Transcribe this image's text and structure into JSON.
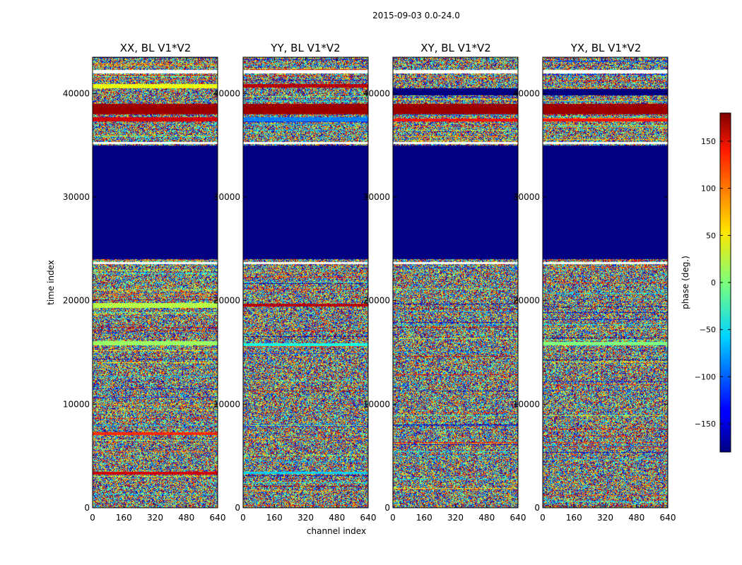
{
  "chart_data": {
    "type": "heatmap",
    "suptitle": "2015-09-03 0.0-24.0",
    "xlabel": "channel index",
    "ylabel": "time index",
    "xlim": [
      0,
      640
    ],
    "ylim": [
      0,
      43500
    ],
    "x_ticks": [
      0,
      160,
      320,
      480,
      640
    ],
    "y_ticks": [
      0,
      10000,
      20000,
      30000,
      40000
    ],
    "colorbar": {
      "label": "phase (deg.)",
      "range": [
        -180,
        180
      ],
      "ticks": [
        150,
        100,
        50,
        0,
        -50,
        -100,
        -150
      ],
      "tick_labels": [
        "150",
        "100",
        "50",
        "0",
        "−50",
        "−100",
        "−150"
      ],
      "colormap": "jet"
    },
    "panels": [
      {
        "title": "XX, BL V1*V2",
        "flat_regions": [
          {
            "t0": 24000,
            "t1": 35000,
            "phase": -180
          },
          {
            "t0": 38000,
            "t1": 39000,
            "phase": 170
          },
          {
            "t0": 37300,
            "t1": 37700,
            "phase": 150
          },
          {
            "t0": 40500,
            "t1": 40900,
            "phase": 40
          },
          {
            "t0": 19300,
            "t1": 19800,
            "phase": 20
          },
          {
            "t0": 15700,
            "t1": 16100,
            "phase": 10
          },
          {
            "t0": 7000,
            "t1": 7300,
            "phase": 120
          },
          {
            "t0": 3200,
            "t1": 3500,
            "phase": 150
          }
        ]
      },
      {
        "title": "YY, BL V1*V2",
        "flat_regions": [
          {
            "t0": 24000,
            "t1": 35000,
            "phase": -180
          },
          {
            "t0": 38000,
            "t1": 39000,
            "phase": 170
          },
          {
            "t0": 37300,
            "t1": 37700,
            "phase": -90
          },
          {
            "t0": 40600,
            "t1": 40900,
            "phase": 160
          },
          {
            "t0": 19400,
            "t1": 19700,
            "phase": 160
          },
          {
            "t0": 15600,
            "t1": 15900,
            "phase": -40
          },
          {
            "t0": 3300,
            "t1": 3500,
            "phase": -60
          }
        ]
      },
      {
        "title": "XY, BL V1*V2",
        "flat_regions": [
          {
            "t0": 24000,
            "t1": 35000,
            "phase": -180
          },
          {
            "t0": 38000,
            "t1": 39000,
            "phase": 170
          },
          {
            "t0": 39800,
            "t1": 40500,
            "phase": -180
          },
          {
            "t0": 37300,
            "t1": 37600,
            "phase": 130
          }
        ]
      },
      {
        "title": "YX, BL V1*V2",
        "flat_regions": [
          {
            "t0": 24000,
            "t1": 35000,
            "phase": -180
          },
          {
            "t0": 38000,
            "t1": 39000,
            "phase": 170
          },
          {
            "t0": 39800,
            "t1": 40400,
            "phase": -180
          },
          {
            "t0": 37300,
            "t1": 37600,
            "phase": 130
          },
          {
            "t0": 15700,
            "t1": 16000,
            "phase": 0
          }
        ]
      }
    ]
  }
}
